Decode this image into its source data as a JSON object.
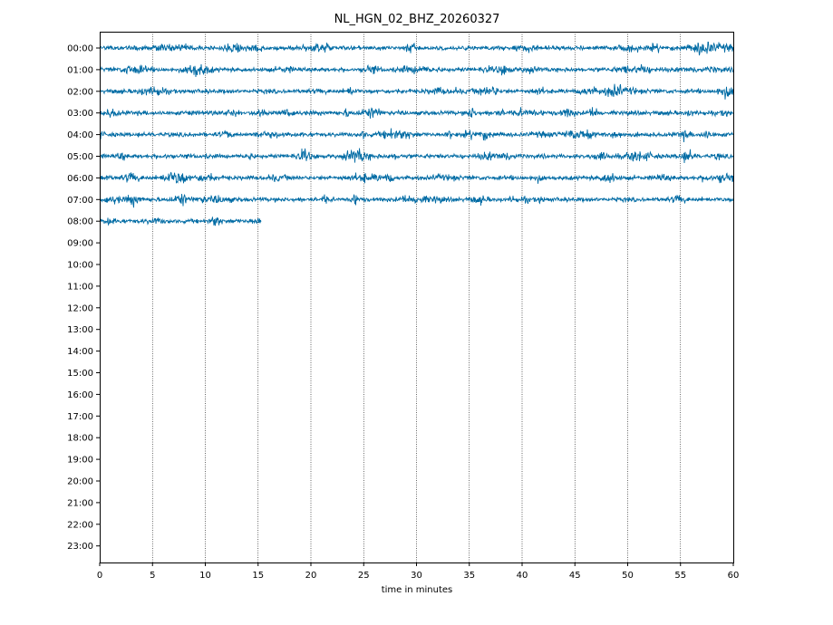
{
  "chart_data": {
    "type": "line",
    "subtype": "helicorder",
    "title": "NL_HGN_02_BHZ_20260327",
    "xlabel": "time in minutes",
    "ylabel": "",
    "xlim": [
      0,
      60
    ],
    "x_ticks": [
      "0",
      "5",
      "10",
      "15",
      "20",
      "25",
      "30",
      "35",
      "40",
      "45",
      "50",
      "55",
      "60"
    ],
    "y_ticks": [
      "00:00",
      "01:00",
      "02:00",
      "03:00",
      "04:00",
      "05:00",
      "06:00",
      "07:00",
      "08:00",
      "09:00",
      "10:00",
      "11:00",
      "12:00",
      "13:00",
      "14:00",
      "15:00",
      "16:00",
      "17:00",
      "18:00",
      "19:00",
      "20:00",
      "21:00",
      "22:00",
      "23:00"
    ],
    "grid": "vertical dotted lines at 5-minute ticks",
    "legend": "none",
    "trace_color": "#006ba4",
    "series": [
      {
        "hour": "00:00",
        "minutes_recorded": 60
      },
      {
        "hour": "01:00",
        "minutes_recorded": 60
      },
      {
        "hour": "02:00",
        "minutes_recorded": 60
      },
      {
        "hour": "03:00",
        "minutes_recorded": 60
      },
      {
        "hour": "04:00",
        "minutes_recorded": 60
      },
      {
        "hour": "05:00",
        "minutes_recorded": 60
      },
      {
        "hour": "06:00",
        "minutes_recorded": 60
      },
      {
        "hour": "07:00",
        "minutes_recorded": 60
      },
      {
        "hour": "08:00",
        "minutes_recorded": 15.3
      }
    ]
  }
}
